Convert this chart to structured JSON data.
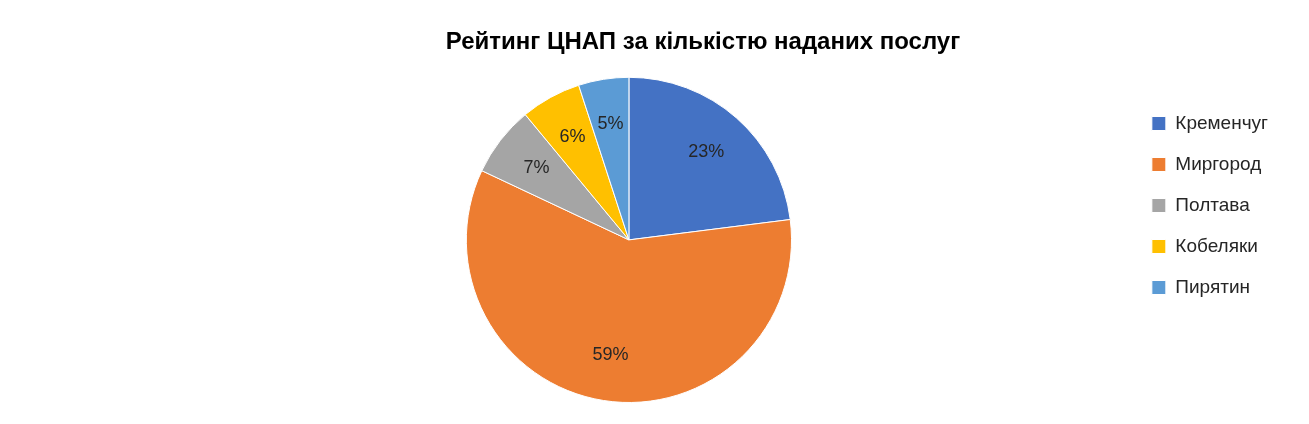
{
  "chart_data": {
    "type": "pie",
    "title": "Рейтинг ЦНАП за кількістю наданих послуг",
    "categories": [
      "Кременчуг",
      "Миргород",
      "Полтава",
      "Кобеляки",
      "Пирятин"
    ],
    "values": [
      23,
      59,
      7,
      6,
      5
    ],
    "colors": [
      "#4472c4",
      "#ed7d31",
      "#a5a5a5",
      "#ffc000",
      "#5b9bd5"
    ],
    "value_labels": [
      "23%",
      "59%",
      "7%",
      "6%",
      "5%"
    ],
    "legend": "right"
  }
}
